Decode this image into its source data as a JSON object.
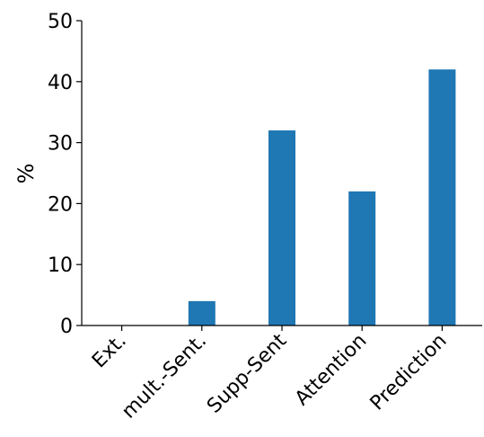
{
  "chart_data": {
    "type": "bar",
    "categories": [
      "Ext.",
      "mult.-Sent.",
      "Supp-Sent",
      "Attention",
      "Prediction"
    ],
    "values": [
      0,
      4,
      32,
      22,
      42
    ],
    "title": "",
    "xlabel": "",
    "ylabel": "%",
    "ylim": [
      0,
      50
    ],
    "yticks": [
      0,
      10,
      20,
      30,
      40,
      50
    ],
    "grid": false,
    "bar_color": "#1f77b4"
  }
}
